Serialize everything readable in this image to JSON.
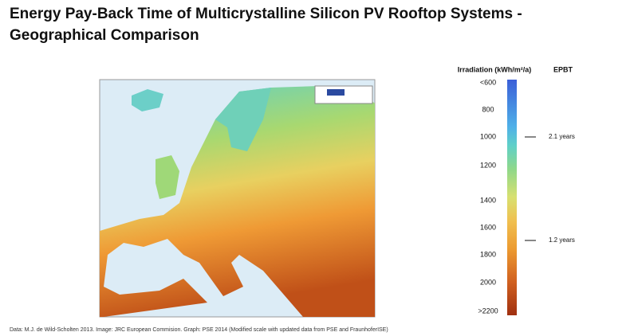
{
  "header": {
    "title_line1": "Energy Pay-Back Time of Multicrystalline Silicon PV Rooftop Systems -",
    "title_line2": "Geographical Comparison"
  },
  "legend": {
    "title": "Irradiation (kWh/m²/a)",
    "epbt_title": "EPBT",
    "labels": [
      "<600",
      "800",
      "1000",
      "1200",
      "1400",
      "1600",
      "1800",
      "2000",
      ">2200"
    ],
    "markers": [
      "2.1 years",
      "1.2 years"
    ]
  },
  "footer": {
    "source": "Data: M.J. de Wild-Scholten 2013.  Image: JRC European Commision. Graph: PSE 2014 (Modified scale with updated data from PSE and FraunhoferISE)"
  }
}
